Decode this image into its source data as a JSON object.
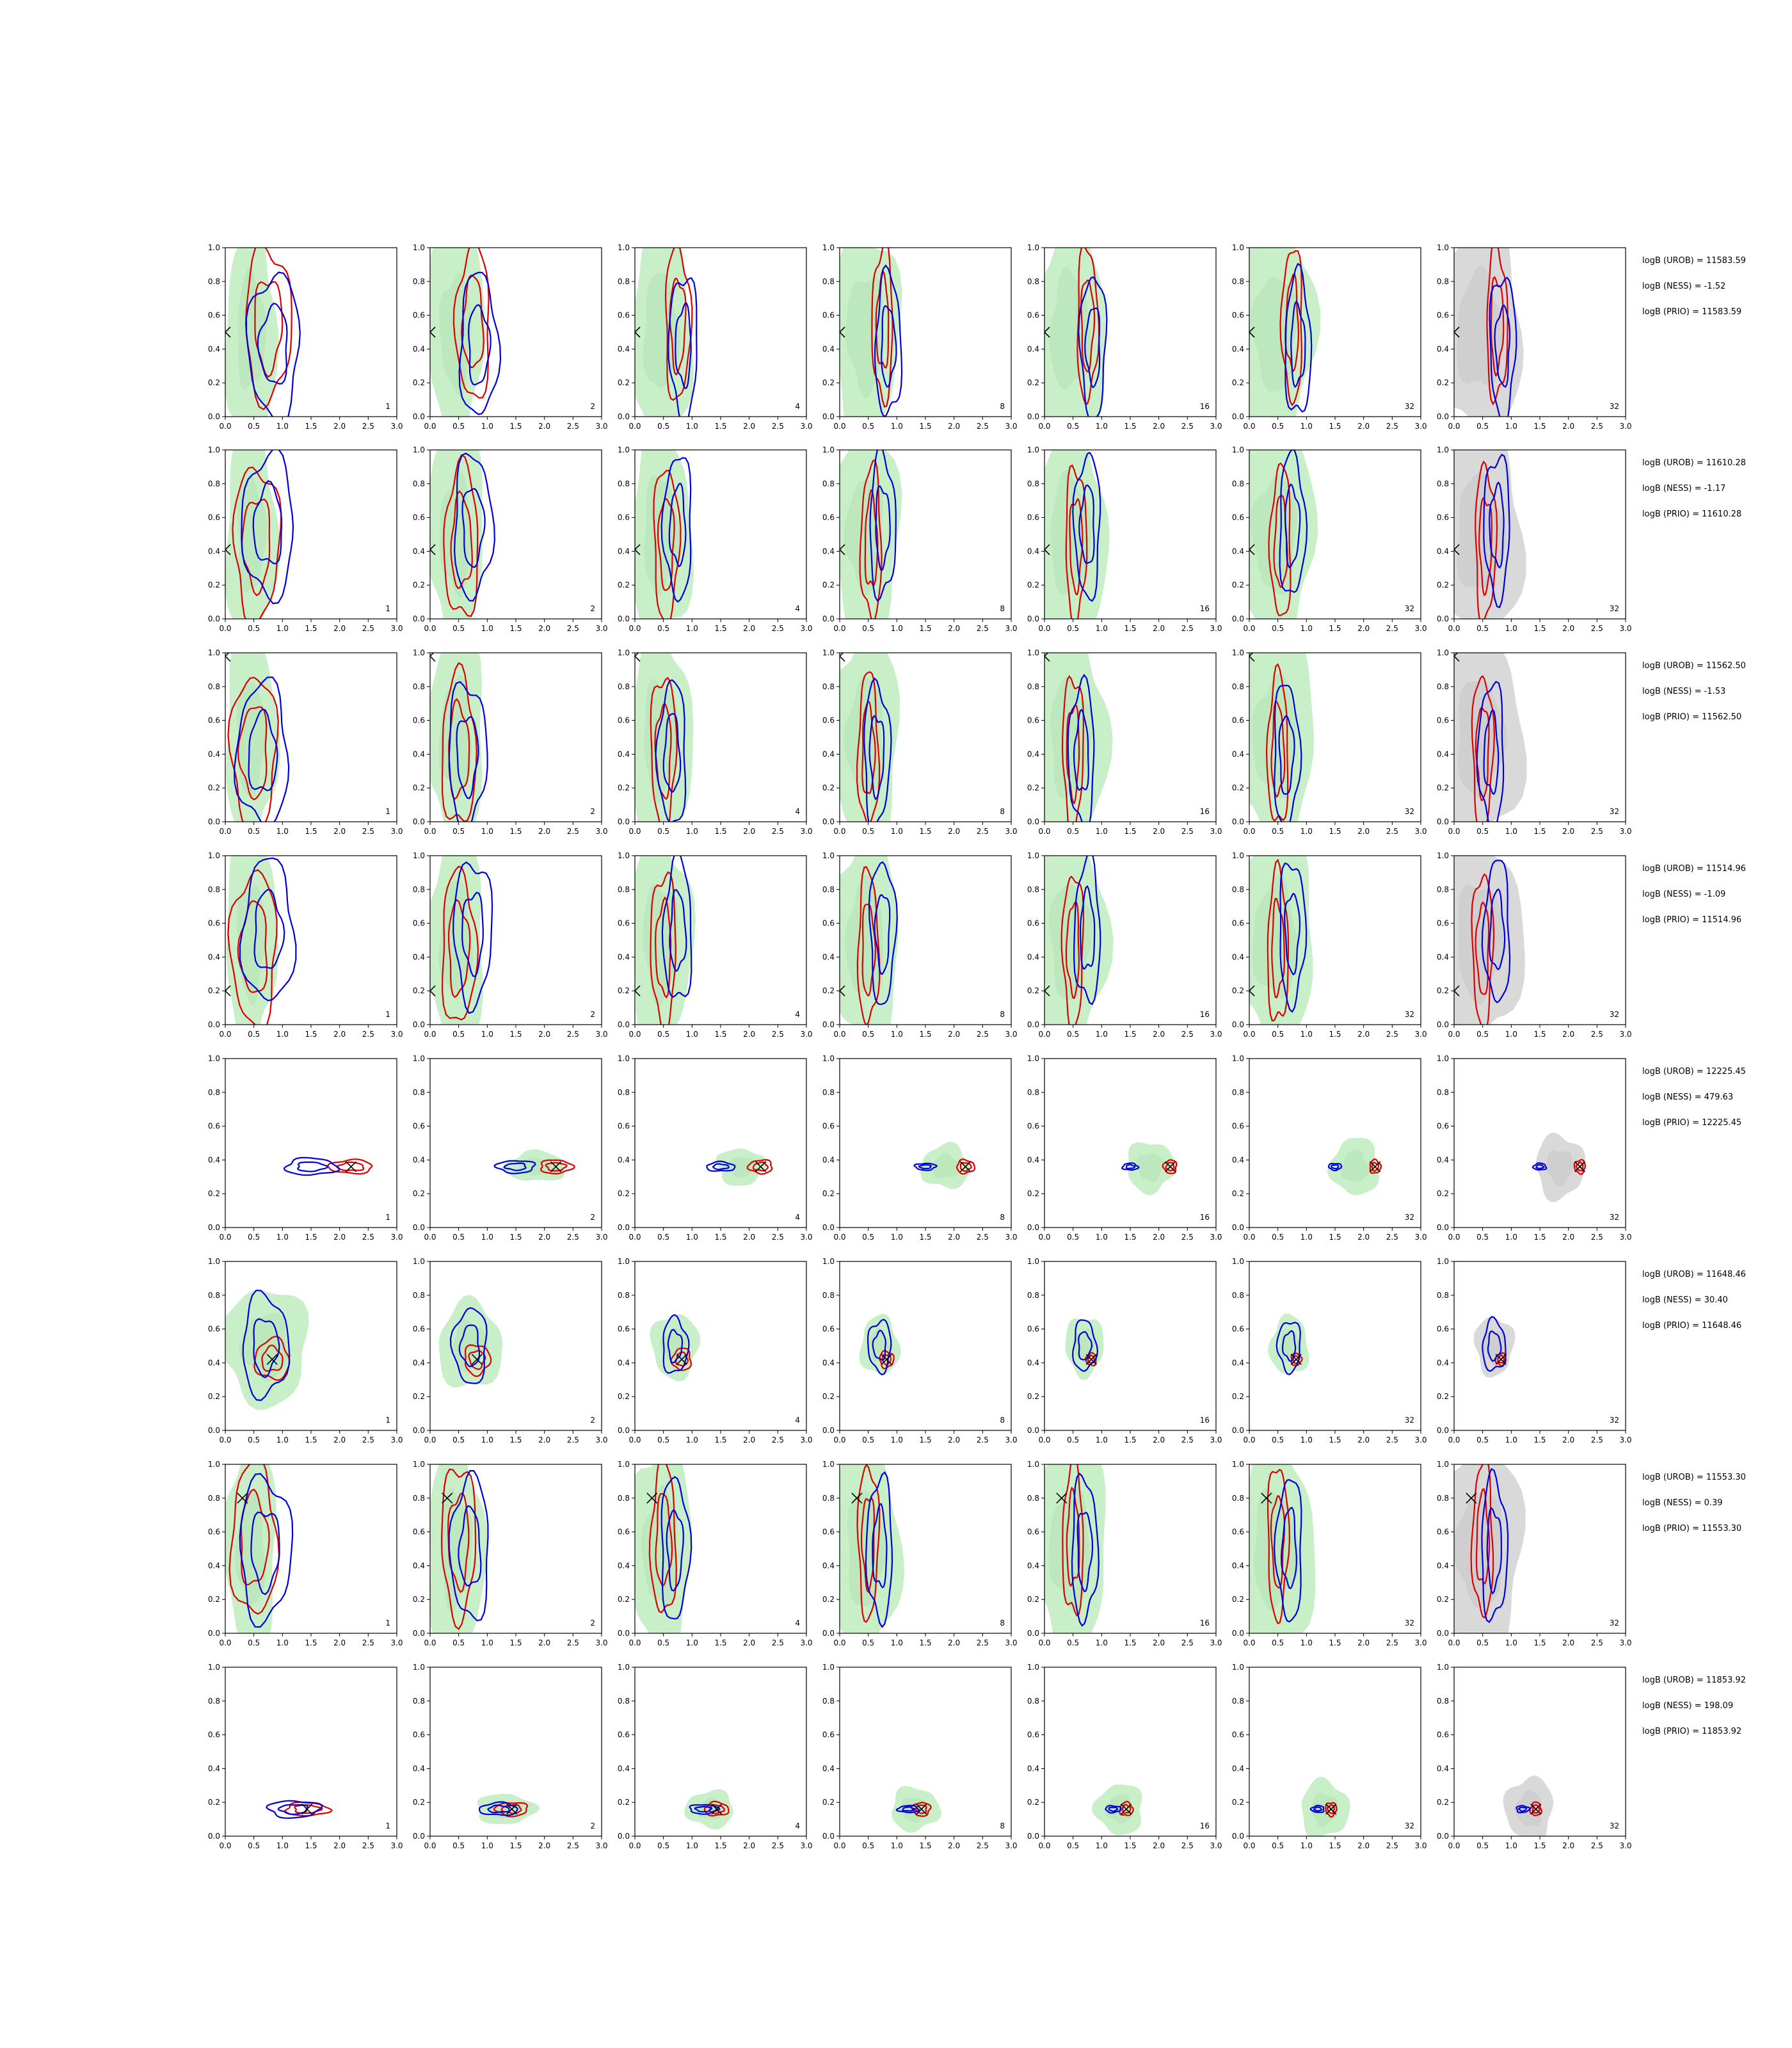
{
  "colors": {
    "prior_fill": "#c8efc8",
    "prior_inner": "#b4e0b4",
    "posterior_grey": "#d9d9d9",
    "contour_a": "#0000dd",
    "contour_b": "#dd0000",
    "truth_marker": "#000000",
    "frame": "#000000"
  },
  "chart_data": {
    "type": "contour-grid",
    "title": "",
    "xlabel": "",
    "ylabel": "",
    "xlim": [
      0.0,
      3.0
    ],
    "ylim": [
      0.0,
      1.0
    ],
    "xticks": [
      "0.0",
      "0.5",
      "1.0",
      "1.5",
      "2.0",
      "2.5",
      "3.0"
    ],
    "yticks": [
      "0.0",
      "0.2",
      "0.4",
      "0.6",
      "0.8",
      "1.0"
    ],
    "column_labels": [
      "1",
      "2",
      "4",
      "8",
      "16",
      "32",
      "32"
    ],
    "grey_column": 6,
    "rows": [
      {
        "truth": [
          0.0,
          0.5
        ],
        "kind": "broad",
        "blue_center": [
          0.85,
          0.42
        ],
        "red_center": [
          0.75,
          0.55
        ],
        "stats": [
          "logB (UROB) = 11583.59",
          "logB (NESS) = -1.52",
          "logB (PRIO) = 11583.59"
        ]
      },
      {
        "truth": [
          0.0,
          0.41
        ],
        "kind": "broad",
        "blue_center": [
          0.75,
          0.55
        ],
        "red_center": [
          0.55,
          0.45
        ],
        "stats": [
          "logB (UROB) = 11610.28",
          "logB (NESS) = -1.17",
          "logB (PRIO) = 11610.28"
        ]
      },
      {
        "truth": [
          0.0,
          0.98
        ],
        "kind": "broad",
        "blue_center": [
          0.65,
          0.4
        ],
        "red_center": [
          0.5,
          0.42
        ],
        "stats": [
          "logB (UROB) = 11562.50",
          "logB (NESS) = -1.53",
          "logB (PRIO) = 11562.50"
        ]
      },
      {
        "truth": [
          0.0,
          0.2
        ],
        "kind": "broad",
        "blue_center": [
          0.75,
          0.55
        ],
        "red_center": [
          0.5,
          0.45
        ],
        "stats": [
          "logB (UROB) = 11514.96",
          "logB (NESS) = -1.09",
          "logB (PRIO) = 11514.96"
        ]
      },
      {
        "truth": [
          2.2,
          0.36
        ],
        "kind": "narrow",
        "blue_center": [
          1.5,
          0.36
        ],
        "red_center": [
          2.2,
          0.36
        ],
        "stats": [
          "logB (UROB) = 12225.45",
          "logB (NESS) = 479.63",
          "logB (PRIO) = 12225.45"
        ]
      },
      {
        "truth": [
          0.82,
          0.42
        ],
        "kind": "medium",
        "blue_center": [
          0.7,
          0.5
        ],
        "red_center": [
          0.82,
          0.42
        ],
        "stats": [
          "logB (UROB) = 11648.46",
          "logB (NESS) = 30.40",
          "logB (PRIO) = 11648.46"
        ]
      },
      {
        "truth": [
          0.3,
          0.8
        ],
        "kind": "broad",
        "blue_center": [
          0.7,
          0.5
        ],
        "red_center": [
          0.5,
          0.55
        ],
        "stats": [
          "logB (UROB) = 11553.30",
          "logB (NESS) = 0.39",
          "logB (PRIO) = 11553.30"
        ]
      },
      {
        "truth": [
          1.43,
          0.16
        ],
        "kind": "narrow",
        "blue_center": [
          1.2,
          0.16
        ],
        "red_center": [
          1.43,
          0.16
        ],
        "stats": [
          "logB (UROB) = 11853.92",
          "logB (NESS) = 198.09",
          "logB (PRIO) = 11853.92"
        ]
      }
    ]
  }
}
